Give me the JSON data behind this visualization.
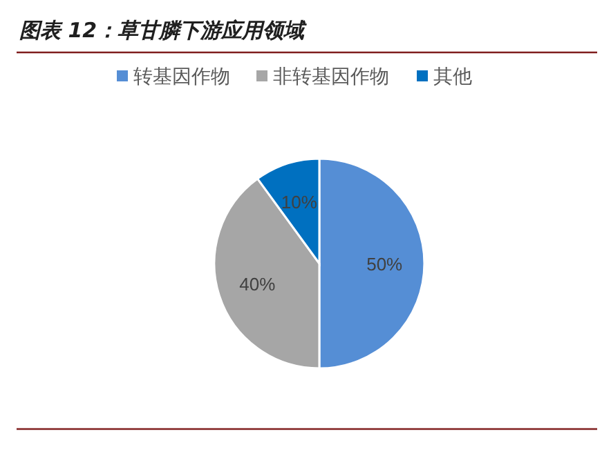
{
  "chart_data": {
    "type": "pie",
    "title": "图表 12：草甘膦下游应用领域",
    "categories": [
      "转基因作物",
      "非转基因作物",
      "其他"
    ],
    "values": [
      50,
      40,
      10
    ],
    "colors": [
      "#558ed5",
      "#a6a6a6",
      "#0070c0"
    ],
    "value_labels": [
      "50%",
      "40%",
      "10%"
    ],
    "legend": "top"
  }
}
